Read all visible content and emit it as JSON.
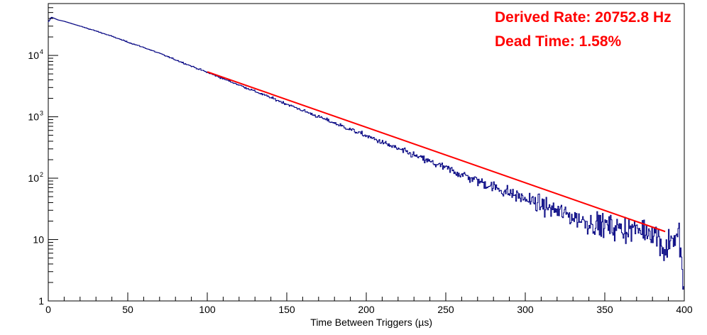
{
  "chart_data": {
    "type": "line",
    "xlabel": "Time Between Triggers (µs)",
    "ylabel": "",
    "title": "",
    "log_y": true,
    "xlim": [
      0,
      400
    ],
    "ylim": [
      1,
      70000
    ],
    "x_ticks": [
      0,
      50,
      100,
      150,
      200,
      250,
      300,
      350,
      400
    ],
    "x_tick_labels": [
      "0",
      "50",
      "100",
      "150",
      "200",
      "250",
      "300",
      "350",
      "400"
    ],
    "y_ticks": [
      1,
      10,
      100,
      1000,
      10000
    ],
    "y_tick_labels": [
      {
        "base": "1",
        "exp": ""
      },
      {
        "base": "10",
        "exp": ""
      },
      {
        "base": "10",
        "exp": "2"
      },
      {
        "base": "10",
        "exp": "3"
      },
      {
        "base": "10",
        "exp": "4"
      }
    ],
    "annotations": [
      "Derived Rate: 20752.8 Hz",
      "Dead Time: 1.58%"
    ],
    "series": [
      {
        "kind": "histogram",
        "color": "#000080",
        "x": [
          0,
          2,
          4,
          6,
          10,
          20,
          30,
          40,
          50,
          60,
          70,
          80,
          90,
          100,
          120,
          140,
          160,
          180,
          200,
          220,
          240,
          260,
          280,
          300,
          320,
          340,
          360,
          380,
          385,
          388,
          392,
          395,
          397,
          398,
          399
        ],
        "y": [
          35000,
          42000,
          40000,
          38000,
          36000,
          30000,
          25000,
          20500,
          16500,
          13500,
          10800,
          8500,
          6700,
          5300,
          3300,
          2050,
          1270,
          790,
          490,
          300,
          185,
          115,
          72,
          46,
          29,
          19,
          15,
          14,
          10,
          6,
          12,
          9,
          13,
          5,
          2
        ]
      },
      {
        "kind": "fit",
        "color": "#ff0000",
        "x": [
          100,
          388
        ],
        "y": [
          5400,
          13.5
        ]
      }
    ]
  }
}
